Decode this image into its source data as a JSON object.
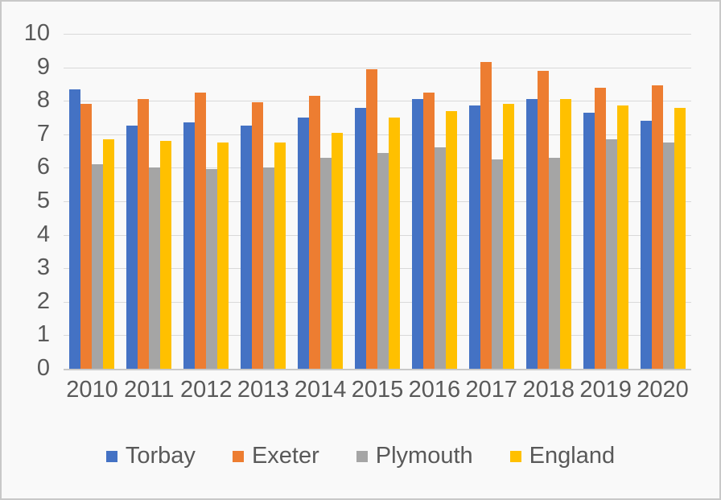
{
  "chart_data": {
    "type": "bar",
    "title": "",
    "xlabel": "",
    "ylabel": "",
    "categories": [
      "2010",
      "2011",
      "2012",
      "2013",
      "2014",
      "2015",
      "2016",
      "2017",
      "2018",
      "2019",
      "2020"
    ],
    "series": [
      {
        "name": "Torbay",
        "color": "#4472C4",
        "values": [
          8.35,
          7.25,
          7.35,
          7.25,
          7.5,
          7.8,
          8.05,
          7.85,
          8.05,
          7.65,
          7.4
        ]
      },
      {
        "name": "Exeter",
        "color": "#ED7D31",
        "values": [
          7.9,
          8.05,
          8.25,
          7.95,
          8.15,
          8.95,
          8.25,
          9.15,
          8.9,
          8.4,
          8.45
        ]
      },
      {
        "name": "Plymouth",
        "color": "#A5A5A5",
        "values": [
          6.1,
          6.0,
          5.95,
          6.0,
          6.3,
          6.45,
          6.6,
          6.25,
          6.3,
          6.85,
          6.75
        ]
      },
      {
        "name": "England",
        "color": "#FFC000",
        "values": [
          6.85,
          6.8,
          6.75,
          6.75,
          7.05,
          7.5,
          7.7,
          7.9,
          8.05,
          7.85,
          7.8
        ]
      }
    ],
    "ylim": [
      0,
      10
    ],
    "ytick_step": 1,
    "yticks": [
      "0",
      "1",
      "2",
      "3",
      "4",
      "5",
      "6",
      "7",
      "8",
      "9",
      "10"
    ],
    "grid": true,
    "legend_position": "bottom"
  },
  "colors": {
    "background": "#f9f9f9",
    "border": "#c8c8c8",
    "gridline": "#d9d9d9",
    "axis_line": "#c9c9c9",
    "text": "#595959"
  }
}
